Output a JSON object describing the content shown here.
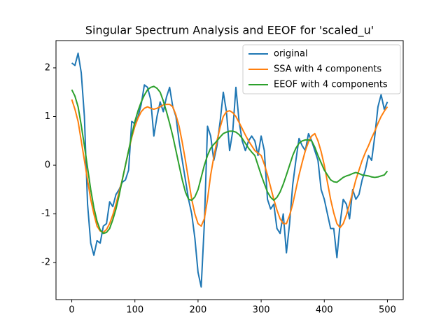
{
  "chart_data": {
    "type": "line",
    "title": "Singular Spectrum Analysis and EEOF for 'scaled_u'",
    "x": [
      0,
      5,
      10,
      15,
      20,
      25,
      30,
      35,
      40,
      45,
      50,
      55,
      60,
      65,
      70,
      75,
      80,
      85,
      90,
      95,
      100,
      105,
      110,
      115,
      120,
      125,
      130,
      135,
      140,
      145,
      150,
      155,
      160,
      165,
      170,
      175,
      180,
      185,
      190,
      195,
      200,
      205,
      210,
      215,
      220,
      225,
      230,
      235,
      240,
      245,
      250,
      255,
      260,
      265,
      270,
      275,
      280,
      285,
      290,
      295,
      300,
      305,
      310,
      315,
      320,
      325,
      330,
      335,
      340,
      345,
      350,
      355,
      360,
      365,
      370,
      375,
      380,
      385,
      390,
      395,
      400,
      405,
      410,
      415,
      420,
      425,
      430,
      435,
      440,
      445,
      450,
      455,
      460,
      465,
      470,
      475,
      480,
      485,
      490,
      495,
      500
    ],
    "series": [
      {
        "name": "original",
        "color": "#1f77b4",
        "values": [
          2.1,
          2.05,
          2.3,
          1.9,
          1.0,
          -0.8,
          -1.6,
          -1.85,
          -1.55,
          -1.6,
          -1.25,
          -1.2,
          -0.75,
          -0.85,
          -0.6,
          -0.5,
          -0.35,
          -0.3,
          -0.1,
          0.9,
          0.85,
          1.0,
          1.25,
          1.65,
          1.6,
          1.35,
          0.6,
          1.0,
          1.3,
          1.1,
          1.4,
          1.6,
          1.2,
          1.0,
          0.5,
          0.1,
          -0.3,
          -0.7,
          -1.0,
          -1.5,
          -2.2,
          -2.5,
          -1.2,
          0.8,
          0.6,
          0.1,
          0.4,
          0.9,
          1.5,
          1.1,
          0.3,
          0.7,
          1.6,
          0.9,
          0.5,
          0.3,
          0.5,
          0.6,
          0.5,
          0.2,
          0.6,
          0.3,
          -0.7,
          -0.9,
          -0.8,
          -1.3,
          -1.4,
          -1.0,
          -1.8,
          -1.2,
          -0.4,
          0.1,
          0.55,
          0.4,
          0.3,
          0.65,
          0.5,
          0.3,
          0.1,
          -0.5,
          -0.7,
          -1.0,
          -1.3,
          -1.3,
          -1.9,
          -1.2,
          -0.7,
          -0.8,
          -1.1,
          -0.5,
          -0.7,
          -0.6,
          -0.3,
          -0.1,
          0.2,
          0.1,
          0.6,
          1.2,
          1.45,
          1.15,
          1.3
        ]
      },
      {
        "name": "SSA with 4 components",
        "color": "#ff7f0e",
        "values": [
          1.35,
          1.15,
          0.9,
          0.5,
          0.1,
          -0.3,
          -0.7,
          -1.0,
          -1.25,
          -1.35,
          -1.38,
          -1.32,
          -1.2,
          -1.02,
          -0.8,
          -0.55,
          -0.3,
          0.0,
          0.3,
          0.57,
          0.8,
          0.97,
          1.1,
          1.17,
          1.2,
          1.17,
          1.15,
          1.17,
          1.2,
          1.24,
          1.25,
          1.25,
          1.2,
          1.03,
          0.8,
          0.47,
          0.1,
          -0.3,
          -0.7,
          -1.0,
          -1.2,
          -1.25,
          -1.1,
          -0.7,
          -0.2,
          0.17,
          0.5,
          0.78,
          1.0,
          1.1,
          1.12,
          1.08,
          1.0,
          0.88,
          0.75,
          0.62,
          0.5,
          0.4,
          0.3,
          0.25,
          0.2,
          0.02,
          -0.2,
          -0.45,
          -0.7,
          -0.92,
          -1.1,
          -1.2,
          -1.2,
          -1.03,
          -0.8,
          -0.5,
          -0.2,
          0.06,
          0.3,
          0.48,
          0.6,
          0.65,
          0.5,
          0.28,
          0.0,
          -0.35,
          -0.7,
          -0.98,
          -1.2,
          -1.28,
          -1.2,
          -1.02,
          -0.8,
          -0.55,
          -0.3,
          -0.1,
          0.1,
          0.26,
          0.4,
          0.56,
          0.7,
          0.86,
          1.0,
          1.11,
          1.2
        ]
      },
      {
        "name": "EEOF with 4 components",
        "color": "#2ca02c",
        "values": [
          1.55,
          1.42,
          1.2,
          0.82,
          0.4,
          -0.05,
          -0.5,
          -0.87,
          -1.15,
          -1.33,
          -1.4,
          -1.38,
          -1.3,
          -1.12,
          -0.9,
          -0.62,
          -0.3,
          0.0,
          0.3,
          0.61,
          0.9,
          1.12,
          1.3,
          1.44,
          1.55,
          1.6,
          1.62,
          1.58,
          1.5,
          1.32,
          1.1,
          0.86,
          0.6,
          0.3,
          0.0,
          -0.3,
          -0.55,
          -0.7,
          -0.72,
          -0.65,
          -0.5,
          -0.25,
          0.0,
          0.2,
          0.35,
          0.43,
          0.5,
          0.58,
          0.65,
          0.68,
          0.7,
          0.7,
          0.68,
          0.63,
          0.55,
          0.45,
          0.35,
          0.27,
          0.2,
          0.0,
          -0.2,
          -0.38,
          -0.55,
          -0.66,
          -0.72,
          -0.66,
          -0.55,
          -0.39,
          -0.2,
          0.0,
          0.2,
          0.35,
          0.45,
          0.5,
          0.52,
          0.52,
          0.5,
          0.37,
          0.2,
          0.05,
          -0.1,
          -0.2,
          -0.3,
          -0.34,
          -0.35,
          -0.3,
          -0.25,
          -0.22,
          -0.2,
          -0.17,
          -0.15,
          -0.17,
          -0.2,
          -0.21,
          -0.22,
          -0.24,
          -0.25,
          -0.24,
          -0.22,
          -0.2,
          -0.12
        ]
      }
    ],
    "xlim": [
      -25,
      525
    ],
    "ylim": [
      -2.76,
      2.56
    ],
    "xticks": [
      0,
      100,
      200,
      300,
      400,
      500
    ],
    "yticks": [
      -2,
      -1,
      0,
      1,
      2
    ],
    "legend": "upper right"
  }
}
